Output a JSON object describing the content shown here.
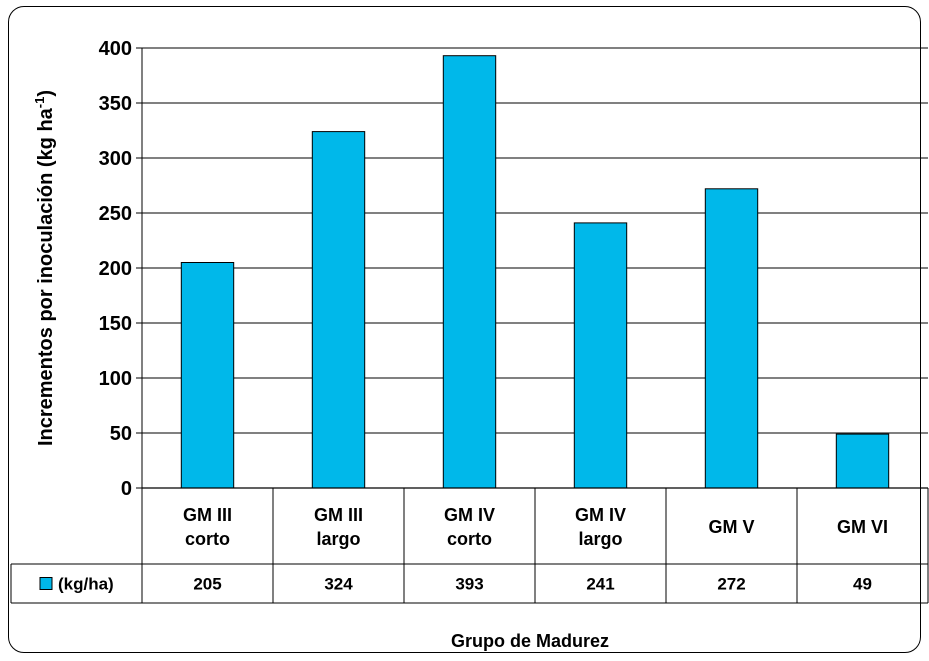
{
  "chart_data": {
    "type": "bar",
    "categories": [
      [
        "GM III",
        "corto"
      ],
      [
        "GM III",
        "largo"
      ],
      [
        "GM IV",
        "corto"
      ],
      [
        "GM IV",
        "largo"
      ],
      [
        "GM V"
      ],
      [
        "GM VI"
      ]
    ],
    "series": [
      {
        "name": "(kg/ha)",
        "values": [
          205,
          324,
          393,
          241,
          272,
          49
        ],
        "color": "#00b8ea"
      }
    ],
    "yticks": [
      "0",
      "50",
      "100",
      "150",
      "200",
      "250",
      "300",
      "350",
      "400"
    ],
    "ylim": [
      0,
      400
    ],
    "ylabel": "Incrementos por inoculación (kg ha",
    "ylabel_sup": "-1",
    "ylabel_end": ")",
    "xlabel": "Grupo de Madurez",
    "grid": true,
    "legend": "data-table"
  }
}
